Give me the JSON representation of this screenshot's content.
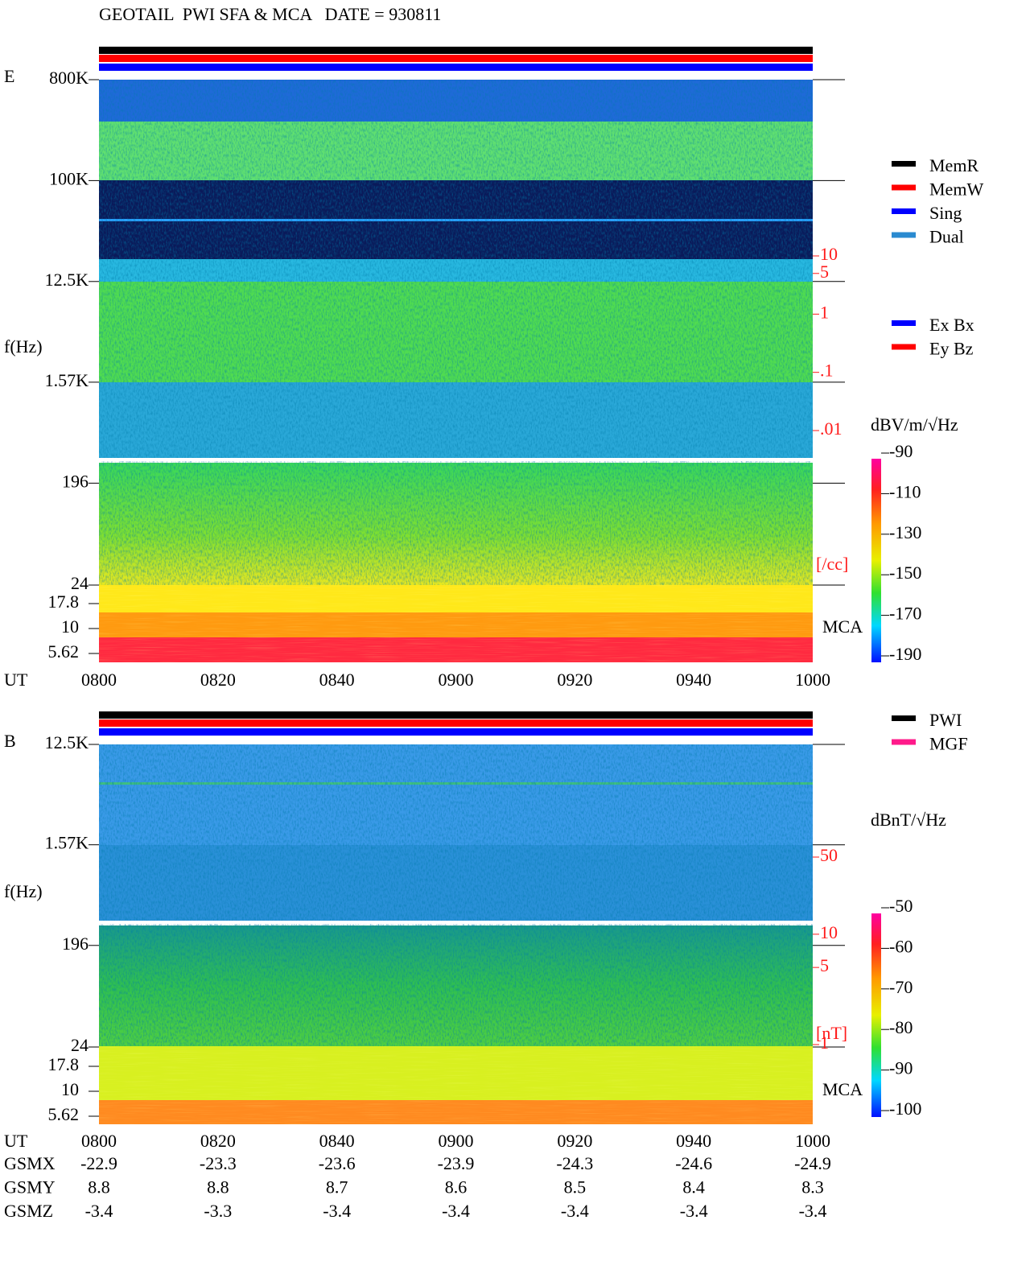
{
  "title": "GEOTAIL  PWI SFA & MCA   DATE = 930811",
  "chart_data": [
    {
      "type": "spectrogram",
      "panel_label": "E",
      "ylabel": "f(Hz)",
      "xlabel": "UT",
      "yscale": "log",
      "ylim": [
        24,
        800000
      ],
      "yticks": [
        {
          "value": 800000,
          "label": "800K"
        },
        {
          "value": 100000,
          "label": "100K"
        },
        {
          "value": 12500,
          "label": "12.5K"
        },
        {
          "value": 1570,
          "label": "1.57K"
        },
        196,
        24
      ],
      "mca_label": "MCA",
      "mca_ylim": [
        5.62,
        17.8
      ],
      "mca_yticks": [
        17.8,
        10,
        5.62
      ],
      "xticks": [
        "0800",
        "0820",
        "0840",
        "0900",
        "0920",
        "0940",
        "1000"
      ],
      "density_unit": "[/cc]",
      "density_lim": [
        0.01,
        10
      ],
      "density_ticks": [
        10,
        5,
        1,
        {
          "value": 0.1,
          "label": ".1"
        },
        {
          "value": 0.01,
          "label": ".01"
        }
      ],
      "colorbar": {
        "label": "dBV/m/√Hz",
        "lim": [
          -190,
          -90
        ],
        "ticks": [
          -90,
          -110,
          -130,
          -150,
          -170,
          -190
        ]
      },
      "legend": [
        {
          "name": "MemR",
          "color": "#000000"
        },
        {
          "name": "MemW",
          "color": "#ff0000"
        },
        {
          "name": "Sing",
          "color": "#0000ff"
        },
        {
          "name": "Dual",
          "color": "#2a8ad0"
        }
      ],
      "legend2": [
        {
          "name": "Ex Bx",
          "color": "#0000ff"
        },
        {
          "name": "Ey Bz",
          "color": "#ff0000"
        }
      ]
    },
    {
      "type": "spectrogram",
      "panel_label": "B",
      "ylabel": "f(Hz)",
      "xlabel": "UT",
      "yscale": "log",
      "ylim": [
        24,
        12500
      ],
      "yticks": [
        {
          "value": 12500,
          "label": "12.5K"
        },
        {
          "value": 1570,
          "label": "1.57K"
        },
        196,
        24
      ],
      "mca_label": "MCA",
      "mca_ylim": [
        5.62,
        17.8
      ],
      "mca_yticks": [
        17.8,
        10,
        5.62
      ],
      "xticks": [
        "0800",
        "0820",
        "0840",
        "0900",
        "0920",
        "0940",
        "1000"
      ],
      "density_unit": "[nT]",
      "density_lim": [
        1,
        50
      ],
      "density_ticks": [
        50,
        10,
        5,
        1
      ],
      "colorbar": {
        "label": "dBnT/√Hz",
        "lim": [
          -100,
          -50
        ],
        "ticks": [
          -50,
          -60,
          -70,
          -80,
          -90,
          -100
        ]
      },
      "legend": [
        {
          "name": "PWI",
          "color": "#000000"
        },
        {
          "name": "MGF",
          "color": "#ff1a8a"
        }
      ]
    }
  ],
  "orbit": {
    "rows": [
      {
        "name": "GSMX",
        "values": [
          -22.9,
          -23.3,
          -23.6,
          -23.9,
          -24.3,
          -24.6,
          -24.9
        ]
      },
      {
        "name": "GSMY",
        "values": [
          8.8,
          8.8,
          8.7,
          8.6,
          8.5,
          8.4,
          8.3
        ]
      },
      {
        "name": "GSMZ",
        "values": [
          -3.4,
          -3.3,
          -3.4,
          -3.4,
          -3.4,
          -3.4,
          -3.4
        ]
      }
    ]
  }
}
